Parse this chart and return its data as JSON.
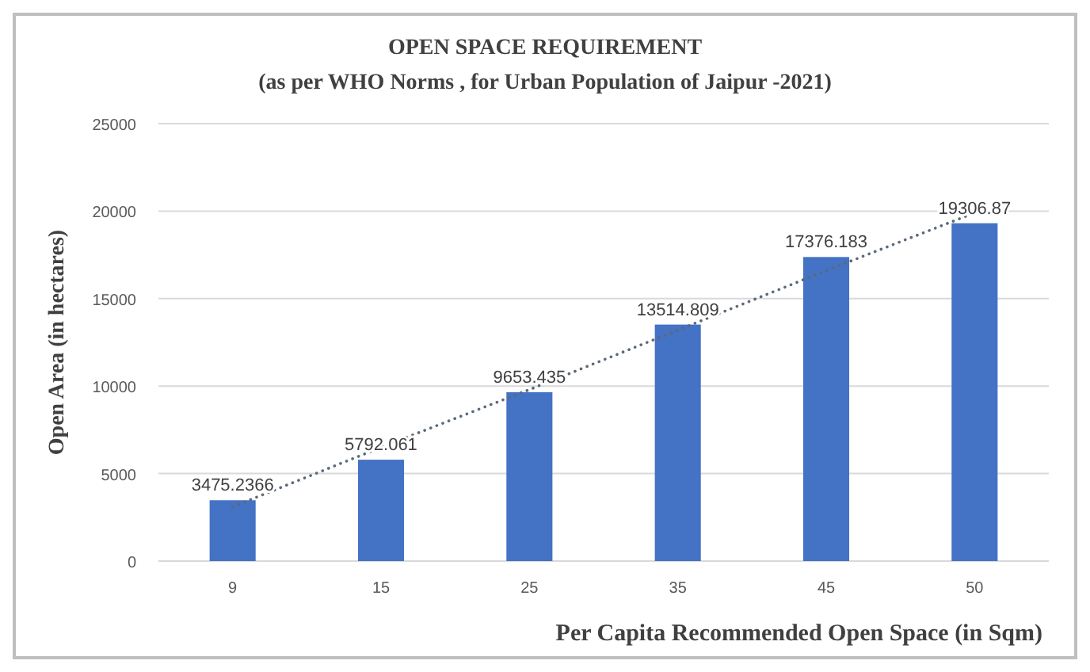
{
  "chart_data": {
    "type": "bar",
    "title": "OPEN SPACE REQUIREMENT",
    "subtitle": "(as per WHO Norms , for Urban Population of Jaipur -2021)",
    "xlabel": "Per Capita Recommended Open Space (in Sqm)",
    "ylabel": "Open Area (in hectares)",
    "categories": [
      "9",
      "15",
      "25",
      "35",
      "45",
      "50"
    ],
    "series": [
      {
        "color": "#4472c4",
        "values": [
          3475.2366,
          5792.061,
          9653.435,
          13514.809,
          17376.183,
          19306.87
        ],
        "value_labels": [
          "3475.2366",
          "5792.061",
          "9653.435",
          "13514.809",
          "17376.183",
          "19306.87"
        ]
      },
      {
        "type": "line",
        "color": "#5a6a7a",
        "line_style": "dotted",
        "values": [
          3100,
          6500,
          9800,
          13200,
          16600,
          19900
        ]
      }
    ],
    "ylim": [
      0,
      25000
    ],
    "yticks": [
      0,
      5000,
      10000,
      15000,
      20000,
      25000
    ],
    "grid": "y"
  }
}
